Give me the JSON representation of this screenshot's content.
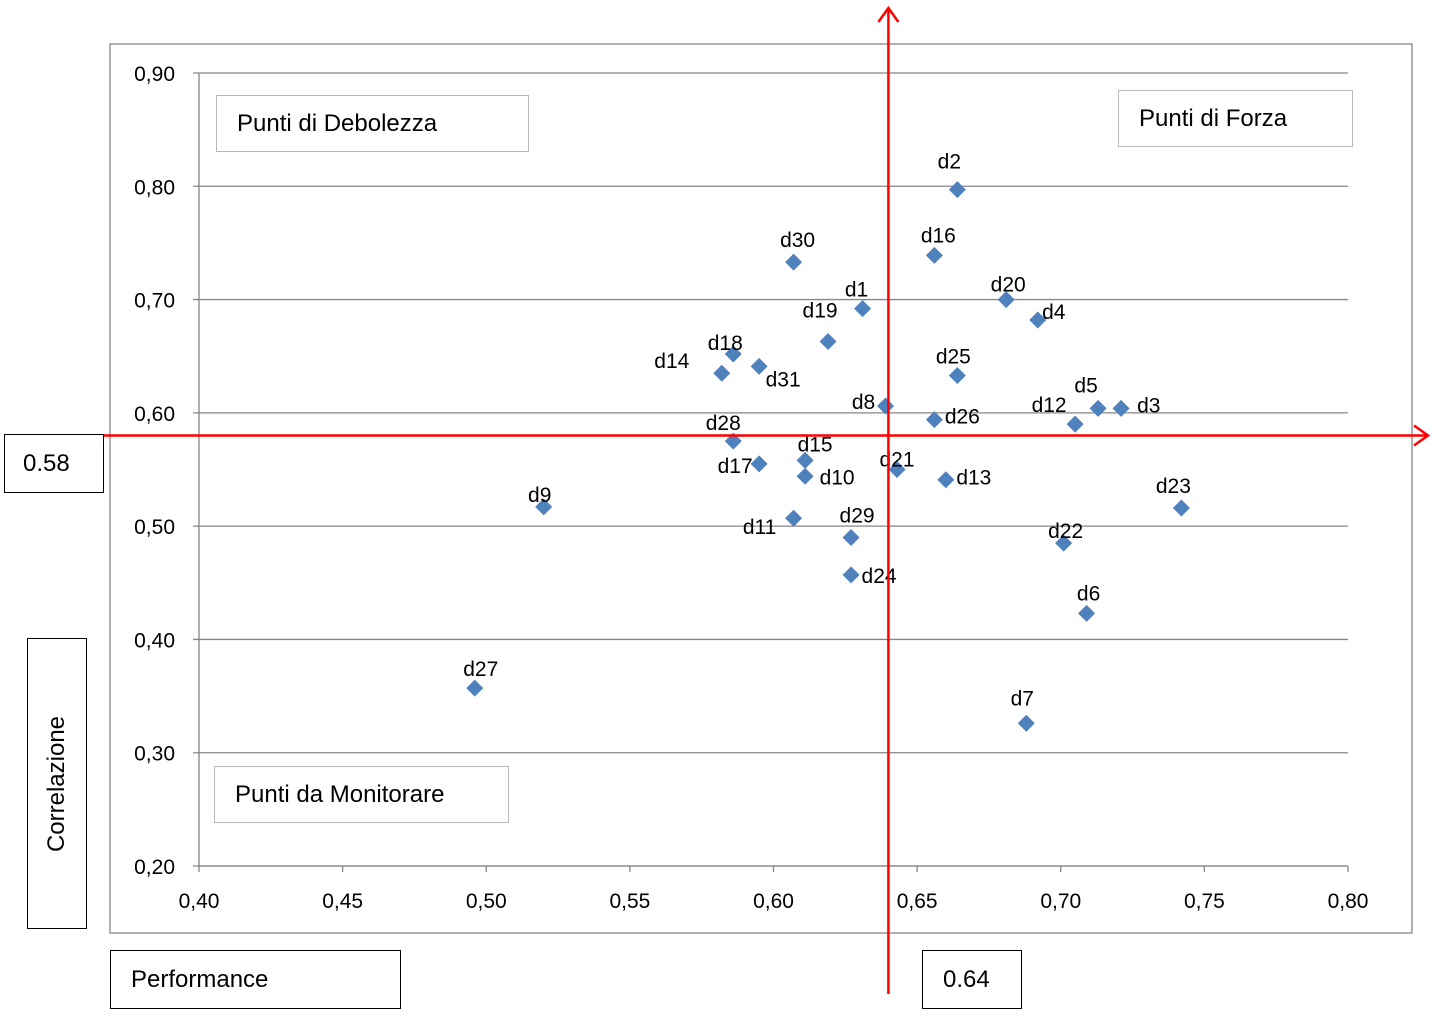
{
  "chart_data": {
    "type": "scatter",
    "x_axis": {
      "min": 0.4,
      "max": 0.8,
      "ticks": [
        "0,40",
        "0,45",
        "0,50",
        "0,55",
        "0,60",
        "0,65",
        "0,70",
        "0,75",
        "0,80"
      ]
    },
    "y_axis": {
      "min": 0.2,
      "max": 0.9,
      "ticks": [
        "0,20",
        "0,30",
        "0,40",
        "0,50",
        "0,60",
        "0,70",
        "0,80",
        "0,90"
      ]
    },
    "grid": "horizontal",
    "marker_color": "#4f81bd",
    "reference_line_color": "#ff0000",
    "threshold_x": 0.64,
    "threshold_y": 0.58,
    "threshold_x_label": "0.64",
    "threshold_y_label": "0.58",
    "xlabel": "Performance",
    "ylabel": "Correlazione",
    "quadrant_labels": {
      "top_left": "Punti di Debolezza",
      "top_right": "Punti di Forza",
      "bottom_left": "Punti da Monitorare"
    },
    "points": [
      {
        "label": "d1",
        "x": 0.631,
        "y": 0.692
      },
      {
        "label": "d2",
        "x": 0.664,
        "y": 0.797
      },
      {
        "label": "d3",
        "x": 0.721,
        "y": 0.604
      },
      {
        "label": "d4",
        "x": 0.692,
        "y": 0.682
      },
      {
        "label": "d5",
        "x": 0.713,
        "y": 0.604
      },
      {
        "label": "d6",
        "x": 0.709,
        "y": 0.423
      },
      {
        "label": "d7",
        "x": 0.688,
        "y": 0.326
      },
      {
        "label": "d8",
        "x": 0.639,
        "y": 0.606
      },
      {
        "label": "d9",
        "x": 0.52,
        "y": 0.517
      },
      {
        "label": "d10",
        "x": 0.611,
        "y": 0.544
      },
      {
        "label": "d11",
        "x": 0.607,
        "y": 0.507
      },
      {
        "label": "d12",
        "x": 0.705,
        "y": 0.59
      },
      {
        "label": "d13",
        "x": 0.66,
        "y": 0.541
      },
      {
        "label": "d14",
        "x": 0.582,
        "y": 0.635
      },
      {
        "label": "d15",
        "x": 0.611,
        "y": 0.558
      },
      {
        "label": "d16",
        "x": 0.656,
        "y": 0.739
      },
      {
        "label": "d17",
        "x": 0.595,
        "y": 0.555
      },
      {
        "label": "d18",
        "x": 0.586,
        "y": 0.652
      },
      {
        "label": "d19",
        "x": 0.619,
        "y": 0.663
      },
      {
        "label": "d20",
        "x": 0.681,
        "y": 0.7
      },
      {
        "label": "d21",
        "x": 0.643,
        "y": 0.55
      },
      {
        "label": "d22",
        "x": 0.701,
        "y": 0.485
      },
      {
        "label": "d23",
        "x": 0.742,
        "y": 0.516
      },
      {
        "label": "d24",
        "x": 0.627,
        "y": 0.457
      },
      {
        "label": "d25",
        "x": 0.664,
        "y": 0.633
      },
      {
        "label": "d26",
        "x": 0.656,
        "y": 0.594
      },
      {
        "label": "d27",
        "x": 0.496,
        "y": 0.357
      },
      {
        "label": "d28",
        "x": 0.586,
        "y": 0.575
      },
      {
        "label": "d29",
        "x": 0.627,
        "y": 0.49
      },
      {
        "label": "d30",
        "x": 0.607,
        "y": 0.733
      },
      {
        "label": "d31",
        "x": 0.595,
        "y": 0.641
      }
    ]
  }
}
